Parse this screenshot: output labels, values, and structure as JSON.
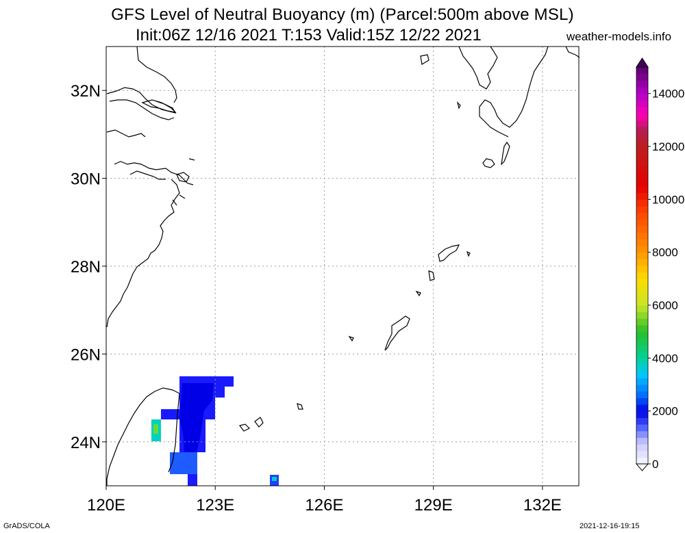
{
  "title_line1": "GFS Level of Neutral Buoyancy (m) (Parcel:500m above MSL)",
  "title_line2": "Init:06Z 12/16 2021 T:153 Valid:15Z 12/22 2021",
  "site": "weather-models.info",
  "footer_left": "GrADS/COLA",
  "footer_right": "2021-12-16-19:15",
  "map": {
    "lon_range": [
      120,
      133
    ],
    "lat_range": [
      23,
      33
    ],
    "lat_ticks": [
      {
        "value": 32,
        "label": "32N"
      },
      {
        "value": 30,
        "label": "30N"
      },
      {
        "value": 28,
        "label": "28N"
      },
      {
        "value": 26,
        "label": "26N"
      },
      {
        "value": 24,
        "label": "24N"
      }
    ],
    "lon_ticks": [
      {
        "value": 120,
        "label": "120E"
      },
      {
        "value": 123,
        "label": "123E"
      },
      {
        "value": 126,
        "label": "126E"
      },
      {
        "value": 129,
        "label": "129E"
      },
      {
        "value": 132,
        "label": "132E"
      }
    ],
    "grid": "dotted"
  },
  "colorbar": {
    "min": 0,
    "max": 15000,
    "labels": [
      "14000",
      "12000",
      "10000",
      "8000",
      "6000",
      "4000",
      "2000",
      "0"
    ],
    "label_values": [
      14000,
      12000,
      10000,
      8000,
      6000,
      4000,
      2000,
      0
    ]
  }
}
